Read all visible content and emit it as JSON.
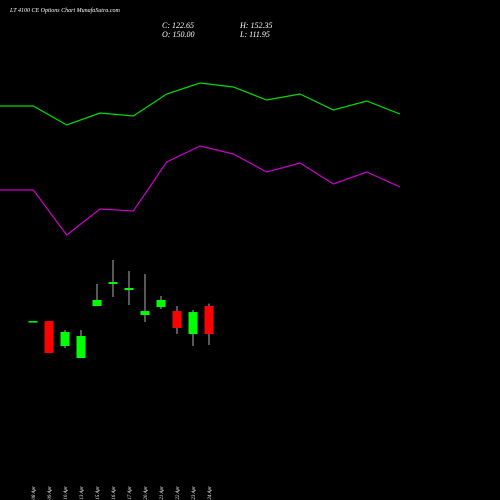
{
  "chart_data": [
    {
      "type": "candlestick",
      "title": "LT 4100 CE Options Chart MunafaSutra.com",
      "annotations": [
        "C: 122.65",
        "H: 152.35",
        "O: 150.00",
        "L: 111.95"
      ],
      "categories": [
        "08 Apr",
        "09 Apr",
        "10 Apr",
        "13 Apr",
        "15 Apr",
        "16 Apr",
        "17 Apr",
        "20 Apr",
        "21 Apr",
        "22 Apr",
        "23 Apr",
        "24 Apr"
      ],
      "open": [
        135.3,
        135.3,
        110.9,
        99.2,
        150,
        171.5,
        165.6,
        141.2,
        149,
        145.1,
        122.6,
        150
      ],
      "high": [
        135.5,
        135.3,
        126.6,
        126.6,
        171.5,
        194.9,
        184.2,
        181.3,
        159.8,
        150,
        146.1,
        152.35
      ],
      "low": [
        135,
        104.1,
        109,
        99.2,
        150,
        158.8,
        151,
        134.4,
        147.1,
        122.6,
        110.9,
        111.95
      ],
      "close": [
        135.3,
        104.1,
        124.6,
        120.7,
        155.9,
        173.4,
        167.6,
        145.1,
        155.9,
        128.5,
        144.1,
        122.65
      ],
      "up_color": "#00ff00",
      "down_color": "#ff0000",
      "ylim": [
        87.5,
        204.7
      ]
    },
    {
      "type": "line",
      "series": [
        {
          "color": "#00dd00",
          "values": [
            194,
            194,
            175,
            187,
            184,
            206,
            217,
            213,
            200,
            206,
            190,
            199,
            186
          ]
        },
        {
          "color": "#cc00cc",
          "values": [
            110,
            110,
            65,
            91,
            89,
            138,
            154,
            146,
            128,
            137,
            116,
            128,
            113
          ]
        }
      ],
      "ylim": [
        40,
        240
      ]
    }
  ]
}
